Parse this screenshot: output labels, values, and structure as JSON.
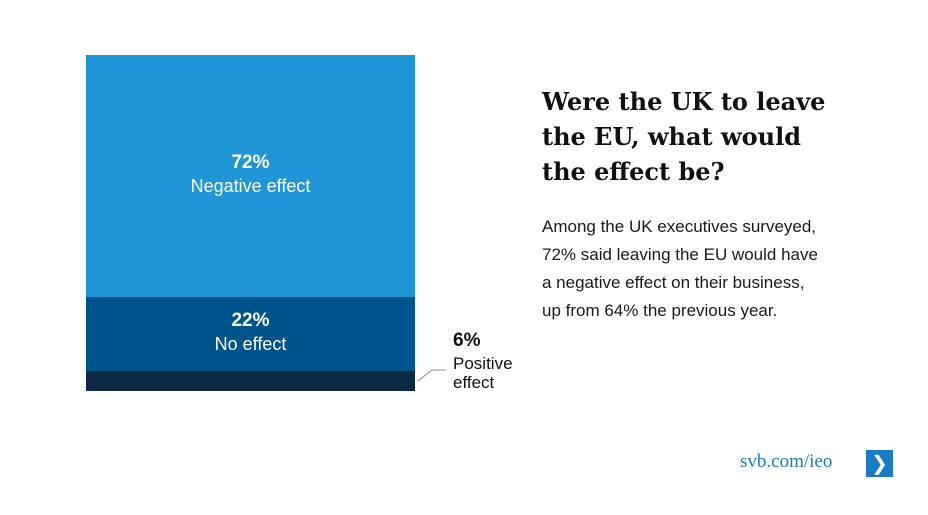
{
  "chart_data": {
    "type": "bar",
    "subtype": "100% stacked single bar",
    "categories": [
      "Negative effect",
      "No effect",
      "Positive effect"
    ],
    "values": [
      72,
      22,
      6
    ],
    "value_labels": [
      "72%",
      "22%",
      "6%"
    ],
    "colors": [
      "#2196d6",
      "#00548c",
      "#0d2a44"
    ],
    "title": "Were the UK to leave the EU, what would the effect be?",
    "xlabel": "",
    "ylabel": "",
    "ylim": [
      0,
      100
    ],
    "grid": false,
    "legend": "none"
  },
  "title": "Were the UK to leave\nthe EU, what would\nthe effect be?",
  "body": "Among the UK executives surveyed,\n72% said leaving the EU would have\na negative effect on their business,\nup from 64% the previous year.",
  "positive_label_text": "Positive\neffect",
  "footer": {
    "link": "svb.com/ieo",
    "arrow_icon": "chevron-right-icon",
    "arrow_glyph": "❯",
    "color": "#1b7bc2"
  }
}
